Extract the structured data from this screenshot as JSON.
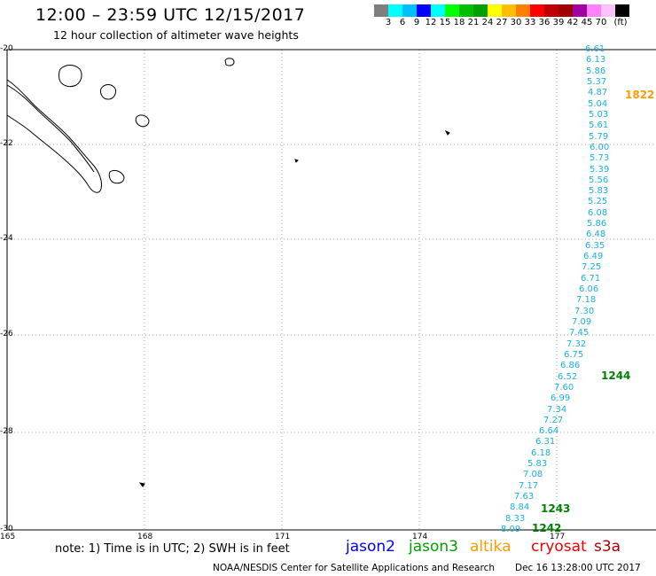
{
  "header": {
    "title": "12:00 – 23:59 UTC 12/15/2017",
    "subtitle": "12 hour collection of altimeter wave heights"
  },
  "legend": {
    "colors": [
      "#7f7f7f",
      "#00ffff",
      "#00bfff",
      "#0000ff",
      "#00ffff",
      "#00ff00",
      "#00bf00",
      "#00a000",
      "#ffff00",
      "#ffbf00",
      "#ff8000",
      "#ff0000",
      "#c00000",
      "#a00000",
      "#a000a0",
      "#ff80ff",
      "#ffc0ff",
      "#000000"
    ],
    "labels": [
      "3",
      "6",
      "9",
      "12",
      "15",
      "18",
      "21",
      "24",
      "27",
      "30",
      "33",
      "36",
      "39",
      "42",
      "45",
      "70",
      "(ft)"
    ]
  },
  "map": {
    "lat_labels": [
      "-20",
      "-22",
      "-24",
      "-26",
      "-28",
      "-30"
    ],
    "lon_labels": [
      "165",
      "168",
      "171",
      "174",
      "177"
    ],
    "track_values": [
      "6.61",
      "6.13",
      "5.86",
      "5.37",
      "4.87",
      "5.04",
      "5.03",
      "5.61",
      "5.79",
      "6.00",
      "5.73",
      "5.39",
      "5.56",
      "5.83",
      "5.25",
      "6.08",
      "5.86",
      "6.48",
      "6.35",
      "6.49",
      "7.25",
      "6.71",
      "6.06",
      "7.18",
      "7.30",
      "7.09",
      "7.45",
      "7.32",
      "6.75",
      "6.86",
      "6.52",
      "7.60",
      "6.99",
      "7.34",
      "7.27",
      "6.64",
      "6.31",
      "6.18",
      "5.83",
      "7.08",
      "7.17",
      "7.63",
      "8.84",
      "8.33",
      "8.09"
    ],
    "pass_times": [
      {
        "label": "1822",
        "color": "#ff9900"
      },
      {
        "label": "1244",
        "color": "#008000"
      },
      {
        "label": "1243",
        "color": "#008000"
      },
      {
        "label": "1242",
        "color": "#008000"
      }
    ]
  },
  "footer": {
    "note": "note: 1) Time is in UTC; 2) SWH is in feet",
    "satellites": [
      {
        "name": "jason2",
        "color": "#0000ee"
      },
      {
        "name": "jason3",
        "color": "#00a000"
      },
      {
        "name": "altika",
        "color": "#ff9900"
      },
      {
        "name": "cryosat",
        "color": "#ee0000"
      },
      {
        "name": "s3a",
        "color": "#aa0000"
      }
    ],
    "credit": "NOAA/NESDIS Center for Satellite Applications and Research",
    "timestamp": "Dec 16 13:28:00 UTC 2017"
  }
}
